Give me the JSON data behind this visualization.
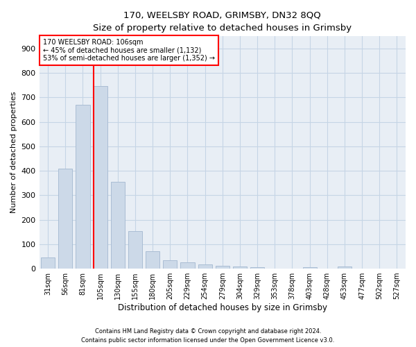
{
  "title1": "170, WEELSBY ROAD, GRIMSBY, DN32 8QQ",
  "title2": "Size of property relative to detached houses in Grimsby",
  "xlabel": "Distribution of detached houses by size in Grimsby",
  "ylabel": "Number of detached properties",
  "categories": [
    "31sqm",
    "56sqm",
    "81sqm",
    "105sqm",
    "130sqm",
    "155sqm",
    "180sqm",
    "205sqm",
    "229sqm",
    "254sqm",
    "279sqm",
    "304sqm",
    "329sqm",
    "353sqm",
    "378sqm",
    "403sqm",
    "428sqm",
    "453sqm",
    "477sqm",
    "502sqm",
    "527sqm"
  ],
  "values": [
    47,
    410,
    670,
    748,
    355,
    153,
    72,
    35,
    25,
    18,
    13,
    8,
    5,
    0,
    0,
    7,
    0,
    10,
    0,
    0,
    0
  ],
  "bar_color": "#ccd9e8",
  "bar_edge_color": "#aabdd4",
  "grid_color": "#c5d5e5",
  "bg_color": "#e8eef5",
  "annotation_box_text": [
    "170 WEELSBY ROAD: 106sqm",
    "← 45% of detached houses are smaller (1,132)",
    "53% of semi-detached houses are larger (1,352) →"
  ],
  "red_line_bin_index": 3,
  "ylim": [
    0,
    950
  ],
  "yticks": [
    0,
    100,
    200,
    300,
    400,
    500,
    600,
    700,
    800,
    900
  ],
  "footnote1": "Contains HM Land Registry data © Crown copyright and database right 2024.",
  "footnote2": "Contains public sector information licensed under the Open Government Licence v3.0."
}
